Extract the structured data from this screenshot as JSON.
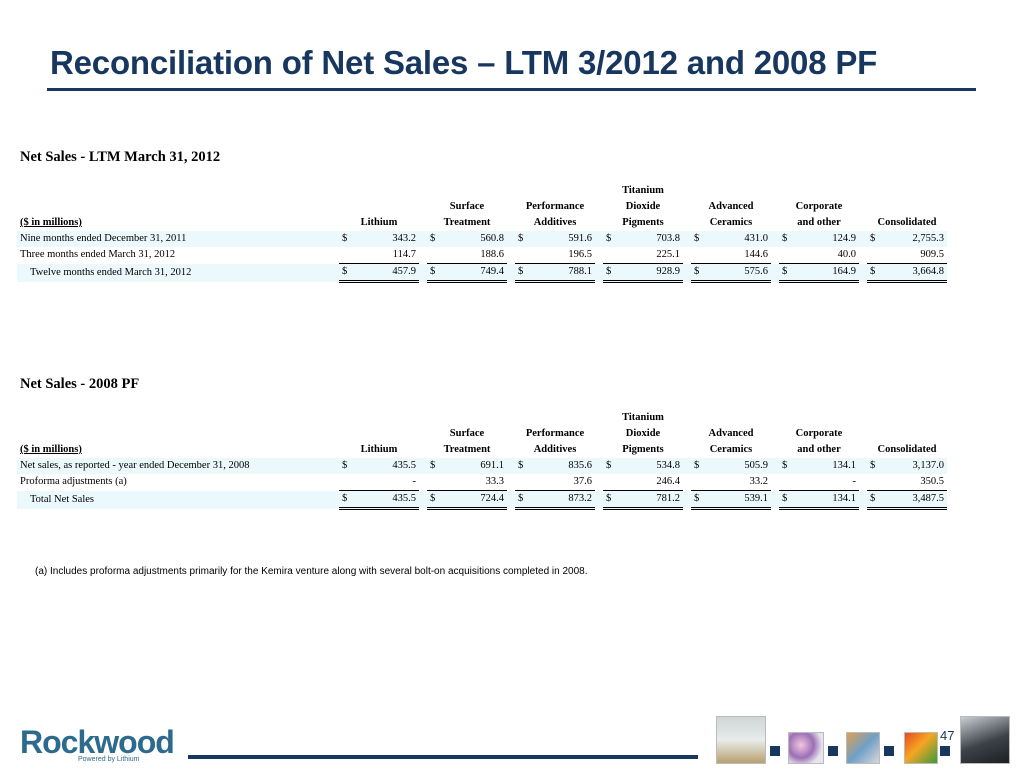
{
  "title": "Reconciliation of Net Sales – LTM 3/2012 and 2008 PF",
  "headers": {
    "unit": "($ in millions)",
    "row1": [
      "",
      "",
      "",
      "Titanium",
      "",
      "",
      ""
    ],
    "row2": [
      "",
      "Surface",
      "Performance",
      "Dioxide",
      "Advanced",
      "Corporate",
      ""
    ],
    "row3": [
      "Lithium",
      "Treatment",
      "Additives",
      "Pigments",
      "Ceramics",
      "and other",
      "Consolidated"
    ]
  },
  "ltm": {
    "title": "Net Sales - LTM March 31, 2012",
    "rows": [
      {
        "label": "Nine months ended December 31, 2011",
        "currency": "$",
        "values": [
          "343.2",
          "560.8",
          "591.6",
          "703.8",
          "431.0",
          "124.9",
          "2,755.3"
        ]
      },
      {
        "label": "Three months ended March 31, 2012",
        "currency": "",
        "values": [
          "114.7",
          "188.6",
          "196.5",
          "225.1",
          "144.6",
          "40.0",
          "909.5"
        ]
      },
      {
        "label": "Twelve months ended March 31, 2012",
        "currency": "$",
        "values": [
          "457.9",
          "749.4",
          "788.1",
          "928.9",
          "575.6",
          "164.9",
          "3,664.8"
        ]
      }
    ]
  },
  "pf2008": {
    "title": "Net Sales - 2008 PF",
    "rows": [
      {
        "label": "Net sales, as reported - year ended December 31, 2008",
        "currency": "$",
        "values": [
          "435.5",
          "691.1",
          "835.6",
          "534.8",
          "505.9",
          "134.1",
          "3,137.0"
        ]
      },
      {
        "label": "Proforma adjustments (a)",
        "currency": "",
        "values": [
          "-",
          "33.3",
          "37.6",
          "246.4",
          "33.2",
          "-",
          "350.5"
        ]
      },
      {
        "label": "Total Net Sales",
        "currency": "$",
        "values": [
          "435.5",
          "724.4",
          "873.2",
          "781.2",
          "539.1",
          "134.1",
          "3,487.5"
        ]
      }
    ]
  },
  "footnote": "(a) Includes proforma adjustments primarily for the Kemira venture along with several bolt-on acquisitions completed in 2008.",
  "logo": {
    "name": "Rockwood",
    "tagline": "Powered by Lithium"
  },
  "page_number": "47",
  "colors": {
    "title": "#17375e",
    "shade": "#ebf9fd",
    "logo": "#2c6a8e"
  }
}
